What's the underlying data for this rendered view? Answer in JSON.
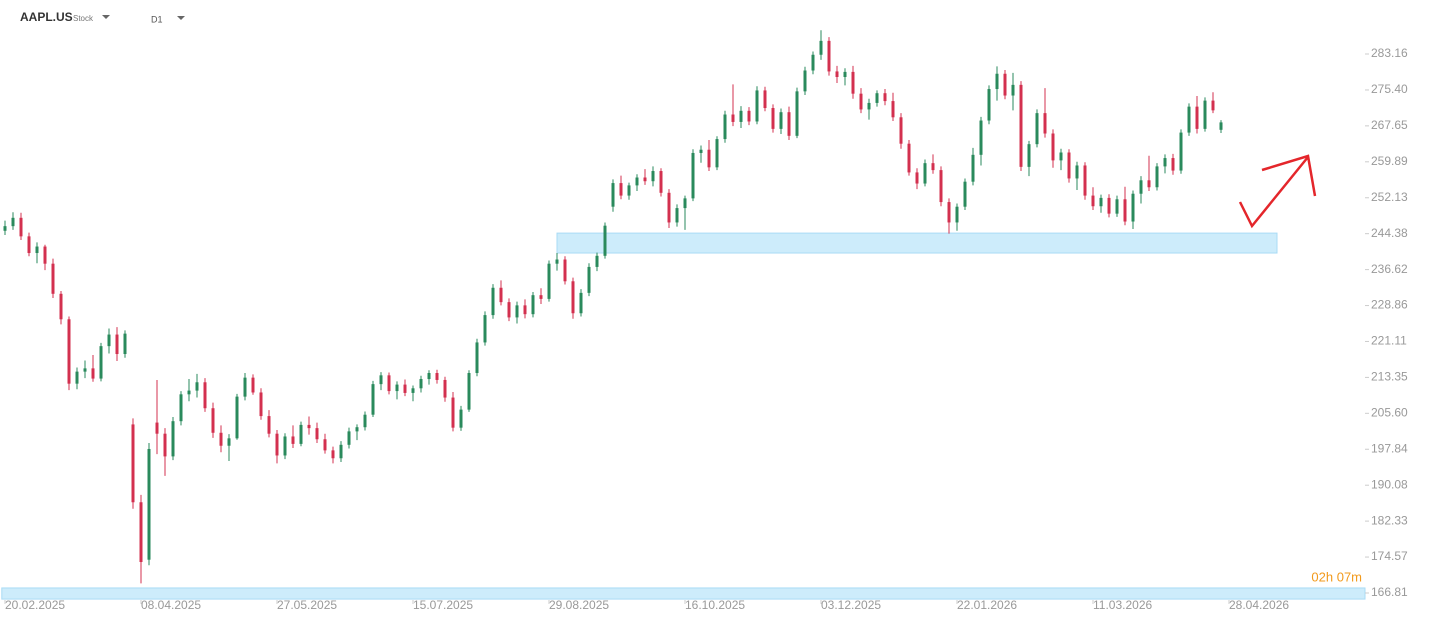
{
  "header": {
    "symbol": "AAPL.US",
    "kind": "Stock",
    "interval": "D1"
  },
  "countdown": "02h 07m",
  "chart_data": {
    "type": "candlestick",
    "up_color": "#2a8a5c",
    "down_color": "#d3304f",
    "zone_color": "#cdecfb",
    "xlim": [
      -0.625,
      170
    ],
    "ylim": [
      165.3,
      294.82
    ],
    "xticks": [
      {
        "value": 0,
        "label": "20.02.2025"
      },
      {
        "value": 17,
        "label": "08.04.2025"
      },
      {
        "value": 34,
        "label": "27.05.2025"
      },
      {
        "value": 51,
        "label": "15.07.2025"
      },
      {
        "value": 68,
        "label": "29.08.2025"
      },
      {
        "value": 85,
        "label": "16.10.2025"
      },
      {
        "value": 102,
        "label": "03.12.2025"
      },
      {
        "value": 119,
        "label": "22.01.2026"
      },
      {
        "value": 136,
        "label": "11.03.2026"
      },
      {
        "value": 153,
        "label": "28.04.2026"
      }
    ],
    "yticks": [
      283.16,
      {
        "value": 275.4,
        "label": "275.40"
      },
      267.65,
      259.89,
      252.13,
      244.38,
      236.62,
      228.86,
      221.11,
      213.35,
      {
        "value": 205.6,
        "label": "205.60"
      },
      197.84,
      190.08,
      182.33,
      174.57,
      166.81
    ],
    "zones": [
      {
        "x": [
          69,
          159
        ],
        "y": [
          240.2,
          244.5
        ]
      },
      {
        "x": [
          -0.4,
          170
        ],
        "y": [
          165.5,
          167.9
        ]
      }
    ],
    "candles": [
      [
        245.0,
        247.2,
        244.1,
        246.0
      ],
      [
        246.0,
        249.0,
        245.2,
        247.8
      ],
      [
        247.8,
        248.9,
        243.0,
        243.8
      ],
      [
        243.8,
        244.6,
        239.5,
        240.2
      ],
      [
        240.2,
        242.5,
        238.0,
        241.6
      ],
      [
        241.6,
        242.0,
        236.5,
        237.9
      ],
      [
        237.9,
        239.0,
        230.5,
        231.4
      ],
      [
        231.4,
        232.0,
        224.8,
        225.9
      ],
      [
        225.9,
        226.5,
        210.6,
        212.0
      ],
      [
        212.0,
        215.5,
        210.8,
        214.6
      ],
      [
        214.6,
        217.0,
        213.2,
        215.3
      ],
      [
        215.3,
        218.2,
        212.4,
        213.1
      ],
      [
        213.1,
        220.8,
        212.5,
        220.1
      ],
      [
        220.1,
        223.9,
        218.5,
        222.6
      ],
      [
        222.6,
        224.2,
        216.9,
        218.4
      ],
      [
        218.4,
        223.5,
        217.6,
        222.8
      ],
      [
        203.2,
        204.5,
        185.0,
        186.4
      ],
      [
        186.4,
        188.0,
        168.9,
        173.5
      ],
      [
        174.0,
        199.2,
        172.8,
        197.9
      ],
      [
        203.6,
        212.8,
        196.8,
        201.2
      ],
      [
        201.2,
        202.4,
        192.1,
        196.3
      ],
      [
        196.3,
        204.8,
        195.5,
        203.9
      ],
      [
        203.9,
        210.4,
        203.0,
        209.7
      ],
      [
        209.7,
        213.0,
        208.2,
        210.5
      ],
      [
        210.5,
        214.1,
        209.0,
        212.3
      ],
      [
        212.3,
        213.2,
        205.9,
        206.7
      ],
      [
        206.7,
        207.9,
        200.3,
        201.4
      ],
      [
        201.4,
        203.0,
        197.2,
        198.6
      ],
      [
        198.6,
        201.1,
        195.3,
        200.2
      ],
      [
        200.2,
        209.8,
        199.9,
        209.2
      ],
      [
        209.2,
        214.3,
        208.4,
        213.3
      ],
      [
        213.3,
        214.0,
        209.6,
        210.1
      ],
      [
        210.1,
        211.0,
        204.2,
        205.0
      ],
      [
        205.0,
        206.3,
        200.4,
        201.2
      ],
      [
        201.2,
        202.0,
        194.8,
        196.5
      ],
      [
        196.5,
        201.3,
        195.7,
        200.6
      ],
      [
        200.6,
        203.0,
        198.1,
        199.0
      ],
      [
        199.0,
        203.8,
        198.5,
        203.1
      ],
      [
        203.1,
        204.9,
        201.0,
        202.4
      ],
      [
        202.4,
        203.6,
        199.2,
        200.0
      ],
      [
        200.0,
        201.2,
        196.9,
        197.6
      ],
      [
        197.6,
        198.4,
        194.8,
        195.9
      ],
      [
        195.9,
        199.6,
        195.1,
        198.8
      ],
      [
        198.8,
        202.5,
        198.0,
        201.7
      ],
      [
        201.7,
        203.2,
        199.8,
        202.6
      ],
      [
        202.6,
        206.0,
        201.9,
        205.3
      ],
      [
        205.3,
        212.6,
        204.8,
        211.9
      ],
      [
        211.9,
        214.5,
        210.6,
        213.8
      ],
      [
        213.8,
        214.4,
        209.7,
        210.4
      ],
      [
        210.4,
        212.5,
        208.6,
        211.8
      ],
      [
        211.8,
        212.9,
        209.3,
        210.0
      ],
      [
        210.0,
        211.6,
        208.2,
        211.0
      ],
      [
        211.0,
        213.7,
        210.1,
        213.0
      ],
      [
        213.0,
        214.9,
        211.8,
        214.3
      ],
      [
        214.3,
        215.0,
        212.0,
        212.8
      ],
      [
        212.8,
        213.5,
        208.1,
        209.0
      ],
      [
        209.0,
        210.2,
        201.7,
        202.5
      ],
      [
        202.5,
        207.2,
        201.8,
        206.4
      ],
      [
        206.4,
        214.9,
        205.9,
        214.3
      ],
      [
        214.3,
        221.7,
        213.6,
        220.9
      ],
      [
        220.9,
        227.6,
        220.2,
        226.8
      ],
      [
        226.8,
        233.5,
        226.0,
        232.7
      ],
      [
        232.7,
        234.3,
        228.9,
        229.6
      ],
      [
        229.6,
        230.4,
        225.5,
        226.3
      ],
      [
        226.3,
        229.7,
        225.0,
        228.9
      ],
      [
        228.9,
        230.2,
        226.1,
        227.0
      ],
      [
        227.0,
        231.8,
        226.3,
        231.1
      ],
      [
        231.1,
        232.6,
        229.2,
        230.3
      ],
      [
        230.3,
        238.6,
        229.7,
        237.9
      ],
      [
        237.9,
        240.2,
        236.4,
        238.8
      ],
      [
        238.8,
        239.5,
        233.4,
        234.1
      ],
      [
        234.1,
        234.9,
        226.0,
        227.2
      ],
      [
        227.2,
        232.4,
        226.5,
        231.6
      ],
      [
        231.6,
        238.0,
        230.9,
        237.2
      ],
      [
        237.2,
        240.3,
        236.3,
        239.6
      ],
      [
        239.6,
        246.8,
        239.0,
        246.1
      ],
      [
        250.2,
        256.1,
        249.1,
        255.3
      ],
      [
        255.3,
        256.9,
        251.8,
        252.6
      ],
      [
        252.6,
        255.4,
        251.7,
        254.8
      ],
      [
        254.8,
        257.2,
        253.6,
        256.5
      ],
      [
        256.5,
        258.3,
        254.9,
        255.7
      ],
      [
        255.7,
        258.9,
        254.6,
        257.9
      ],
      [
        257.9,
        258.5,
        252.4,
        253.2
      ],
      [
        253.2,
        254.0,
        245.6,
        246.8
      ],
      [
        246.8,
        250.7,
        245.9,
        249.9
      ],
      [
        249.9,
        252.6,
        245.2,
        252.0
      ],
      [
        252.0,
        262.6,
        251.4,
        261.8
      ],
      [
        261.8,
        263.4,
        259.7,
        262.5
      ],
      [
        262.5,
        264.6,
        257.9,
        258.7
      ],
      [
        258.7,
        265.4,
        258.1,
        264.8
      ],
      [
        264.8,
        270.9,
        264.0,
        270.1
      ],
      [
        270.1,
        276.6,
        267.6,
        268.5
      ],
      [
        268.5,
        271.9,
        267.2,
        270.9
      ],
      [
        270.9,
        271.7,
        267.8,
        268.6
      ],
      [
        268.6,
        276.2,
        268.0,
        275.3
      ],
      [
        275.3,
        276.1,
        270.8,
        271.5
      ],
      [
        271.5,
        272.3,
        266.2,
        267.0
      ],
      [
        267.0,
        271.4,
        265.9,
        270.6
      ],
      [
        270.6,
        271.8,
        264.6,
        265.5
      ],
      [
        265.5,
        275.9,
        265.0,
        275.1
      ],
      [
        275.1,
        280.4,
        274.3,
        279.6
      ],
      [
        279.6,
        283.7,
        278.8,
        283.0
      ],
      [
        283.0,
        288.3,
        281.9,
        286.0
      ],
      [
        286.0,
        286.8,
        278.5,
        279.4
      ],
      [
        279.4,
        280.6,
        276.9,
        278.2
      ],
      [
        278.2,
        280.1,
        276.4,
        279.3
      ],
      [
        279.3,
        280.6,
        273.5,
        274.6
      ],
      [
        274.6,
        275.8,
        270.4,
        271.2
      ],
      [
        271.2,
        273.5,
        269.0,
        272.6
      ],
      [
        272.6,
        275.3,
        271.8,
        274.7
      ],
      [
        274.7,
        275.6,
        272.1,
        273.0
      ],
      [
        273.0,
        274.8,
        268.7,
        269.5
      ],
      [
        269.5,
        270.4,
        262.7,
        263.8
      ],
      [
        263.8,
        264.6,
        256.9,
        257.6
      ],
      [
        257.6,
        258.5,
        254.0,
        255.2
      ],
      [
        255.2,
        260.4,
        254.6,
        259.6
      ],
      [
        259.6,
        261.5,
        257.3,
        258.1
      ],
      [
        258.1,
        258.9,
        250.3,
        251.2
      ],
      [
        251.2,
        252.0,
        244.4,
        246.8
      ],
      [
        246.8,
        250.9,
        245.0,
        250.2
      ],
      [
        250.2,
        256.3,
        249.5,
        255.6
      ],
      [
        255.6,
        262.9,
        254.8,
        261.4
      ],
      [
        261.4,
        269.6,
        259.1,
        268.8
      ],
      [
        268.8,
        276.4,
        268.0,
        275.6
      ],
      [
        275.6,
        280.5,
        273.1,
        278.9
      ],
      [
        278.9,
        279.7,
        273.4,
        274.2
      ],
      [
        274.2,
        279.1,
        271.0,
        276.5
      ],
      [
        276.5,
        277.3,
        257.9,
        258.8
      ],
      [
        258.8,
        264.4,
        256.8,
        263.7
      ],
      [
        263.7,
        271.2,
        263.0,
        270.4
      ],
      [
        270.4,
        275.8,
        265.1,
        266.0
      ],
      [
        266.0,
        266.9,
        258.6,
        260.2
      ],
      [
        260.2,
        262.7,
        258.1,
        261.9
      ],
      [
        261.9,
        262.6,
        255.4,
        256.3
      ],
      [
        256.3,
        259.9,
        253.8,
        259.1
      ],
      [
        259.1,
        259.8,
        251.7,
        252.6
      ],
      [
        252.6,
        254.4,
        249.5,
        250.3
      ],
      [
        250.3,
        252.8,
        248.9,
        252.1
      ],
      [
        252.1,
        252.9,
        247.9,
        248.7
      ],
      [
        248.7,
        252.6,
        248.0,
        251.8
      ],
      [
        251.8,
        254.5,
        246.2,
        247.0
      ],
      [
        247.0,
        253.7,
        245.4,
        253.0
      ],
      [
        253.0,
        256.8,
        250.9,
        255.9
      ],
      [
        255.9,
        261.2,
        253.6,
        254.4
      ],
      [
        254.4,
        259.6,
        253.7,
        258.9
      ],
      [
        258.9,
        261.5,
        257.4,
        260.7
      ],
      [
        260.7,
        261.6,
        257.1,
        258.0
      ],
      [
        258.0,
        266.9,
        257.3,
        266.2
      ],
      [
        266.2,
        272.5,
        265.5,
        271.8
      ],
      [
        271.8,
        274.1,
        266.0,
        267.0
      ],
      [
        267.0,
        273.8,
        266.4,
        273.1
      ],
      [
        273.1,
        274.9,
        270.4,
        271.0
      ],
      [
        266.8,
        268.9,
        266.1,
        268.4
      ]
    ]
  }
}
